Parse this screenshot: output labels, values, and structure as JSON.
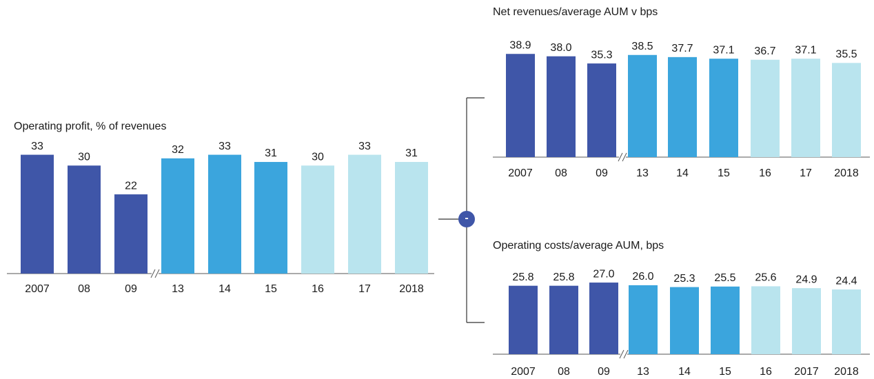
{
  "operator": "-",
  "chart_data": [
    {
      "type": "bar",
      "title": "Operating profit, % of revenues",
      "categories": [
        "2007",
        "08",
        "09",
        "13",
        "14",
        "15",
        "16",
        "17",
        "2018"
      ],
      "values": [
        33,
        30,
        22,
        32,
        33,
        31,
        30,
        33,
        31
      ],
      "value_labels": [
        "33",
        "30",
        "22",
        "32",
        "33",
        "31",
        "30",
        "33",
        "31"
      ],
      "colors": [
        "#3f56a8",
        "#3f56a8",
        "#3f56a8",
        "#3ba5dd",
        "#3ba5dd",
        "#3ba5dd",
        "#b9e4ee",
        "#b9e4ee",
        "#b9e4ee"
      ],
      "ylim": [
        0,
        40
      ]
    },
    {
      "type": "bar",
      "title": "Net revenues/average AUM v bps",
      "categories": [
        "2007",
        "08",
        "09",
        "13",
        "14",
        "15",
        "16",
        "17",
        "2018"
      ],
      "values": [
        38.9,
        38.0,
        35.3,
        38.5,
        37.7,
        37.1,
        36.7,
        37.1,
        35.5
      ],
      "value_labels": [
        "38.9",
        "38.0",
        "35.3",
        "38.5",
        "37.7",
        "37.1",
        "36.7",
        "37.1",
        "35.5"
      ],
      "colors": [
        "#3f56a8",
        "#3f56a8",
        "#3f56a8",
        "#3ba5dd",
        "#3ba5dd",
        "#3ba5dd",
        "#b9e4ee",
        "#b9e4ee",
        "#b9e4ee"
      ],
      "ylim": [
        0,
        40
      ]
    },
    {
      "type": "bar",
      "title": "Operating costs/average AUM, bps",
      "categories": [
        "2007",
        "08",
        "09",
        "13",
        "14",
        "15",
        "16",
        "2017",
        "2018"
      ],
      "values": [
        25.8,
        25.8,
        27.0,
        26.0,
        25.3,
        25.5,
        25.6,
        24.9,
        24.4
      ],
      "value_labels": [
        "25.8",
        "25.8",
        "27.0",
        "26.0",
        "25.3",
        "25.5",
        "25.6",
        "24.9",
        "24.4"
      ],
      "colors": [
        "#3f56a8",
        "#3f56a8",
        "#3f56a8",
        "#3ba5dd",
        "#3ba5dd",
        "#3ba5dd",
        "#b9e4ee",
        "#b9e4ee",
        "#b9e4ee"
      ],
      "ylim": [
        0,
        40
      ]
    }
  ]
}
